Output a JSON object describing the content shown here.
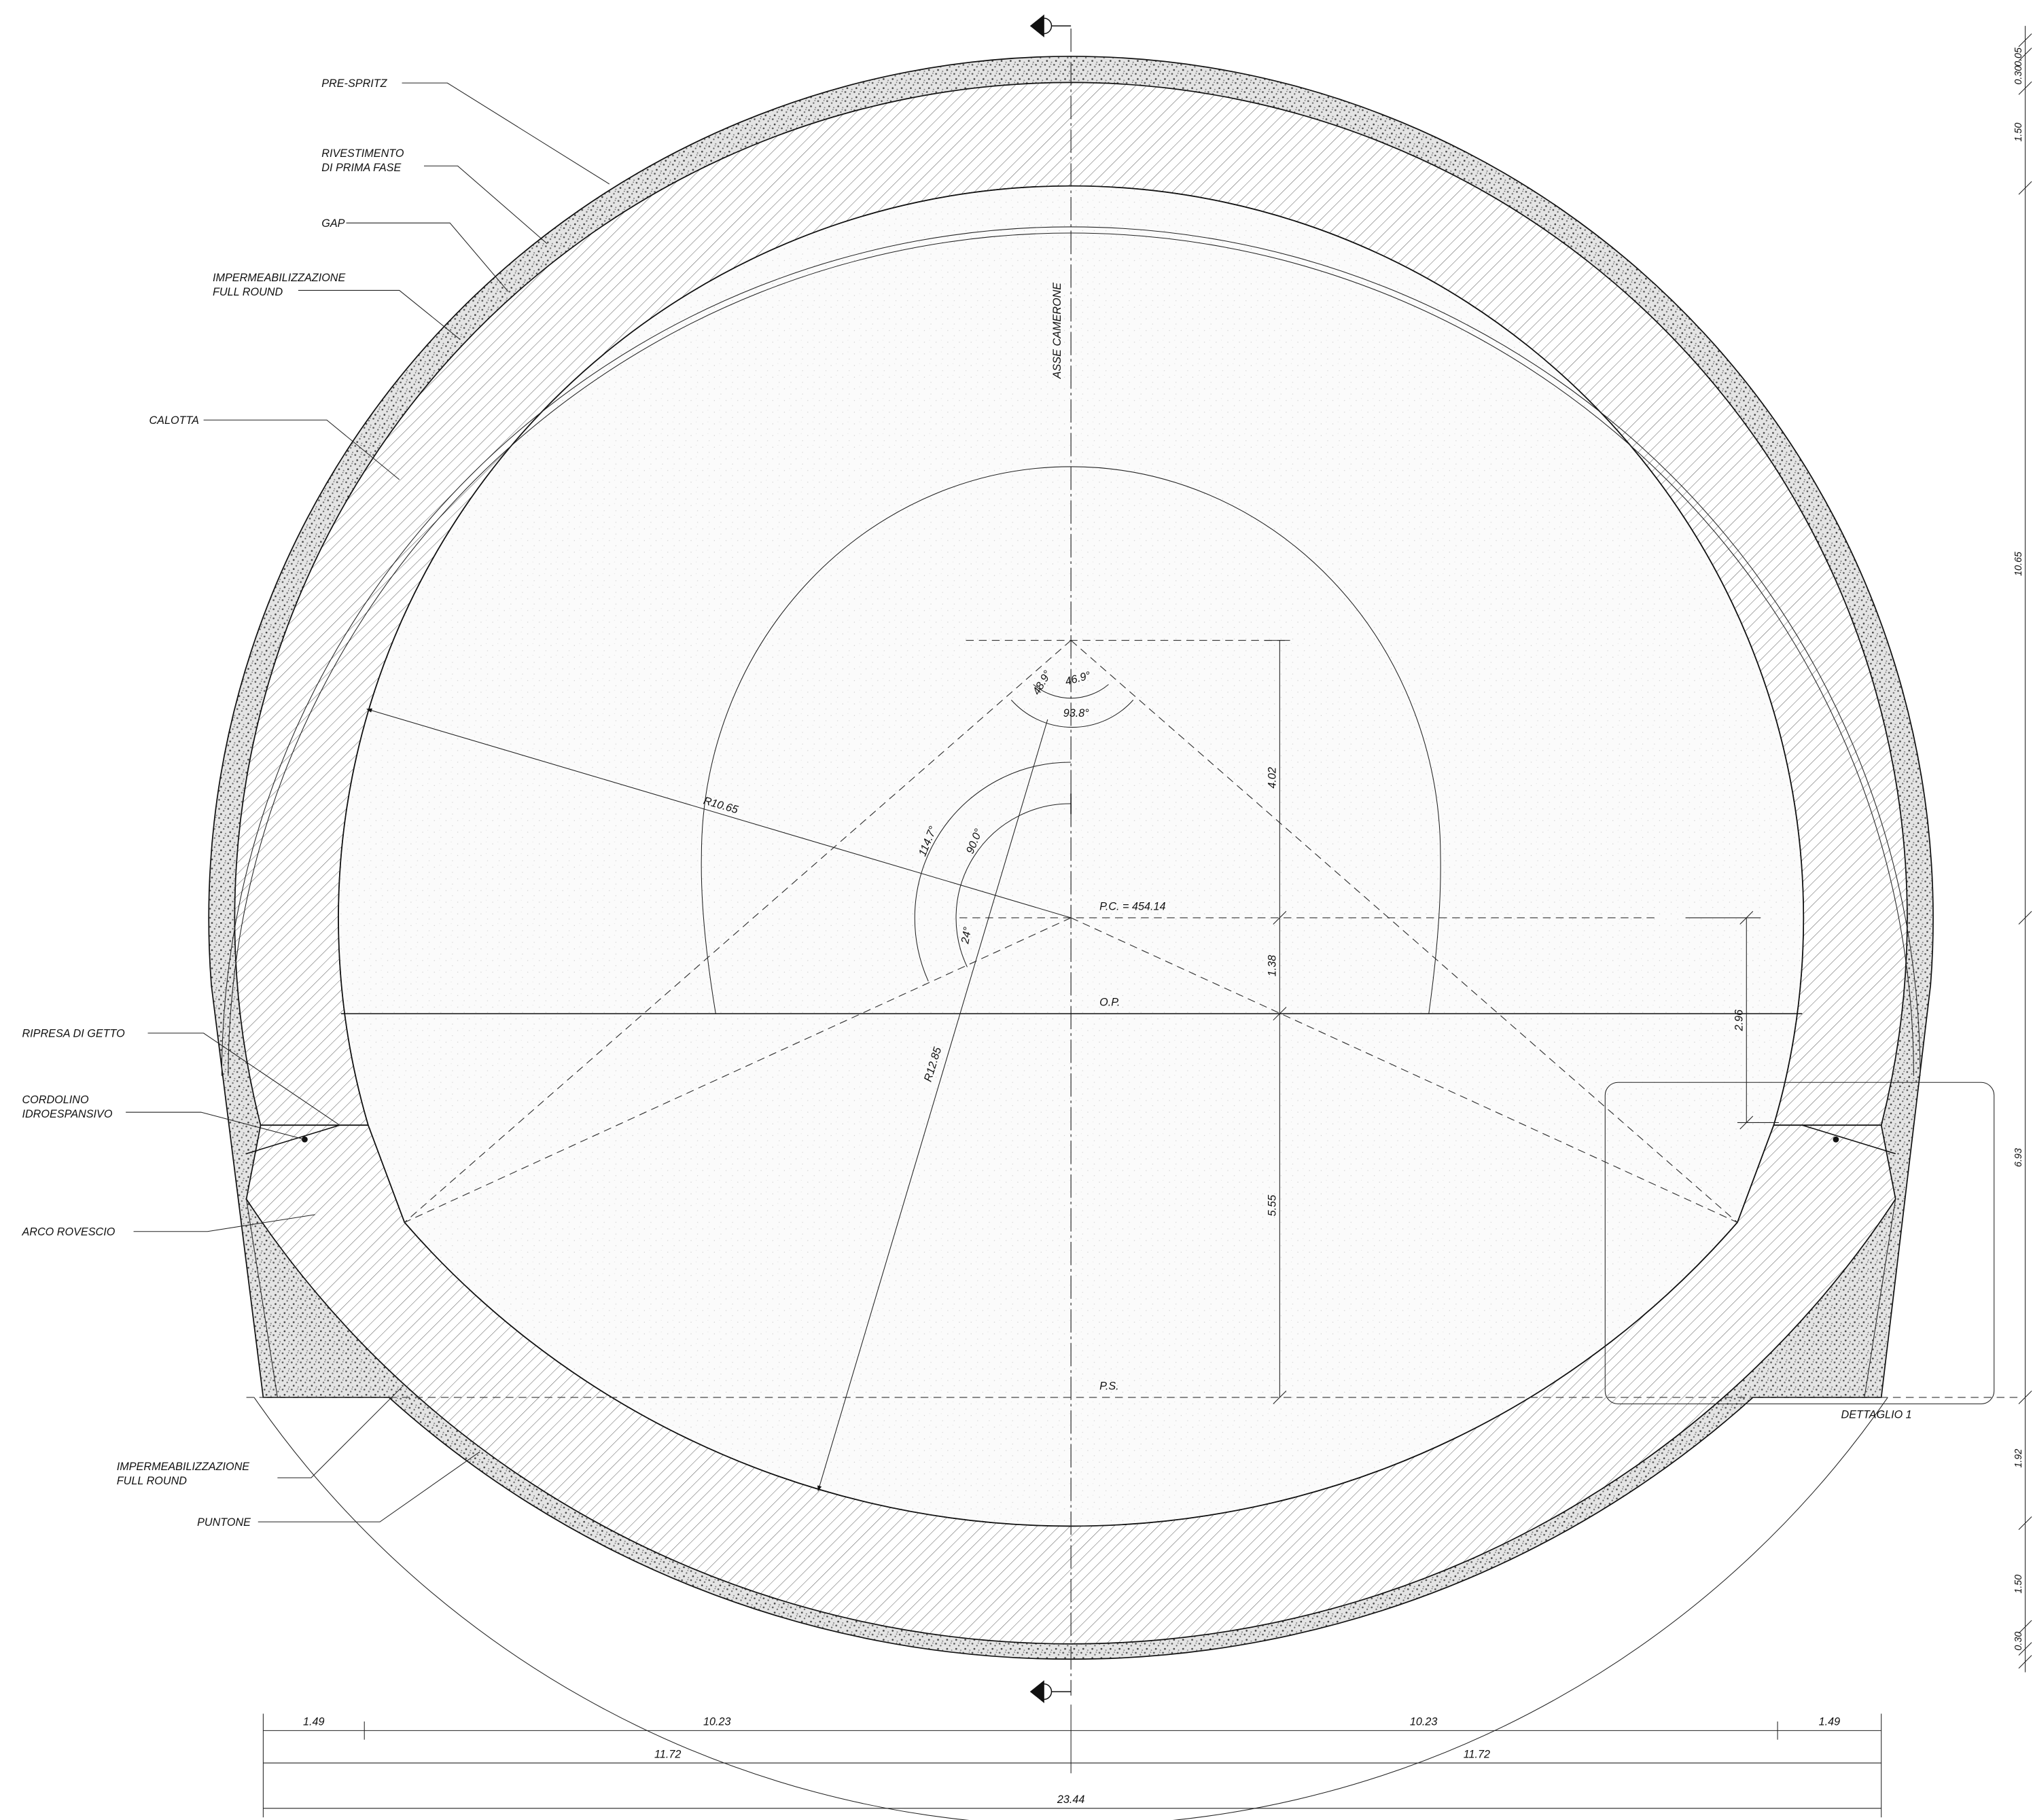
{
  "callouts": [
    [
      "PRE-SPRITZ"
    ],
    [
      "RIVESTIMENTO",
      "DI PRIMA FASE"
    ],
    [
      "GAP"
    ],
    [
      "IMPERMEABILIZZAZIONE",
      "FULL ROUND"
    ],
    [
      "CALOTTA"
    ],
    [
      "RIPRESA DI GETTO"
    ],
    [
      "CORDOLINO",
      "IDROESPANSIVO"
    ],
    [
      "ARCO ROVESCIO"
    ],
    [
      "IMPERMEABILIZZAZIONE",
      "FULL ROUND"
    ],
    [
      "PUNTONE"
    ]
  ],
  "axis_label": "ASSE CAMERONE",
  "levels": {
    "pc": "P.C. = 454.14",
    "op": "O.P.",
    "ps": "P.S."
  },
  "detail": "DETTAGLIO 1",
  "radii": [
    "R10.65",
    "R12.85"
  ],
  "angles": [
    "48.9°",
    "46.9°",
    "93.8°",
    "114.7°",
    "90.0°",
    "24°"
  ],
  "dimensions": {
    "center": [
      "4.02",
      "1.38",
      "5.55"
    ],
    "detail_height": "2.96",
    "right": [
      "0.30",
      "0.05",
      "1.50",
      "10.65",
      "6.93",
      "1.92",
      "1.50",
      "0.30"
    ],
    "bottom_row1": [
      "1.49",
      "10.23",
      "10.23",
      "1.49"
    ],
    "bottom_row2": [
      "11.72",
      "11.72"
    ],
    "total": "23.44"
  }
}
